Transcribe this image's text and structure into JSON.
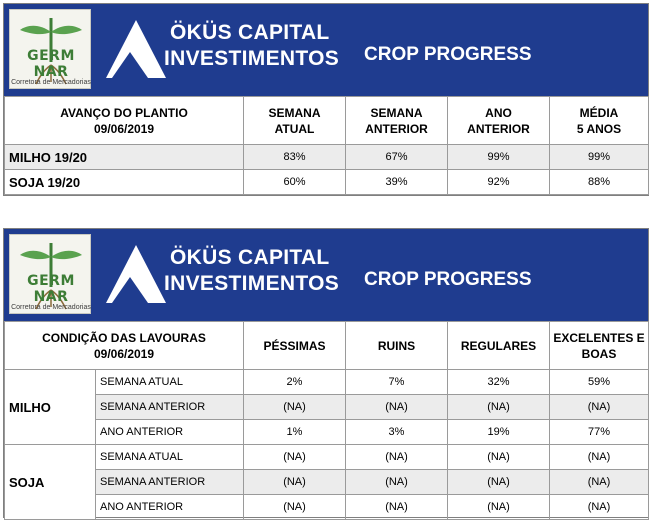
{
  "logo": {
    "word": "GERM NAR",
    "subtitle": "Corretora de Mercadorias"
  },
  "brand": {
    "line1": "ÖKÜS CAPITAL",
    "line2": "INVESTIMENTOS"
  },
  "progress": {
    "title": "CROP PROGRESS",
    "header": {
      "label_line1": "AVANÇO DO PLANTIO",
      "label_line2": "09/06/2019",
      "columns": [
        {
          "line1": "SEMANA",
          "line2": "ATUAL"
        },
        {
          "line1": "SEMANA",
          "line2": "ANTERIOR"
        },
        {
          "line1": "ANO",
          "line2": "ANTERIOR"
        },
        {
          "line1": "MÉDIA",
          "line2": "5 ANOS"
        }
      ]
    },
    "rows": [
      {
        "label": "MILHO 19/20",
        "values": [
          "83%",
          "67%",
          "99%",
          "99%"
        ]
      },
      {
        "label": "SOJA 19/20",
        "values": [
          "60%",
          "39%",
          "92%",
          "88%"
        ]
      }
    ]
  },
  "condition": {
    "title": "CROP PROGRESS",
    "header": {
      "label_line1": "CONDIÇÃO DAS LAVOURAS",
      "label_line2": "09/06/2019",
      "columns": [
        {
          "line1": "PÉSSIMAS",
          "line2": ""
        },
        {
          "line1": "RUINS",
          "line2": ""
        },
        {
          "line1": "REGULARES",
          "line2": ""
        },
        {
          "line1": "EXCELENTES E",
          "line2": "BOAS"
        }
      ]
    },
    "groups": [
      {
        "label": "MILHO",
        "rows": [
          {
            "label": "SEMANA ATUAL",
            "values": [
              "2%",
              "7%",
              "32%",
              "59%"
            ]
          },
          {
            "label": "SEMANA ANTERIOR",
            "values": [
              "(NA)",
              "(NA)",
              "(NA)",
              "(NA)"
            ]
          },
          {
            "label": "ANO ANTERIOR",
            "values": [
              "1%",
              "3%",
              "19%",
              "77%"
            ]
          }
        ]
      },
      {
        "label": "SOJA",
        "rows": [
          {
            "label": "SEMANA ATUAL",
            "values": [
              "(NA)",
              "(NA)",
              "(NA)",
              "(NA)"
            ]
          },
          {
            "label": "SEMANA ANTERIOR",
            "values": [
              "(NA)",
              "(NA)",
              "(NA)",
              "(NA)"
            ]
          },
          {
            "label": "ANO ANTERIOR",
            "values": [
              "(NA)",
              "(NA)",
              "(NA)",
              "(NA)"
            ]
          }
        ]
      }
    ]
  }
}
